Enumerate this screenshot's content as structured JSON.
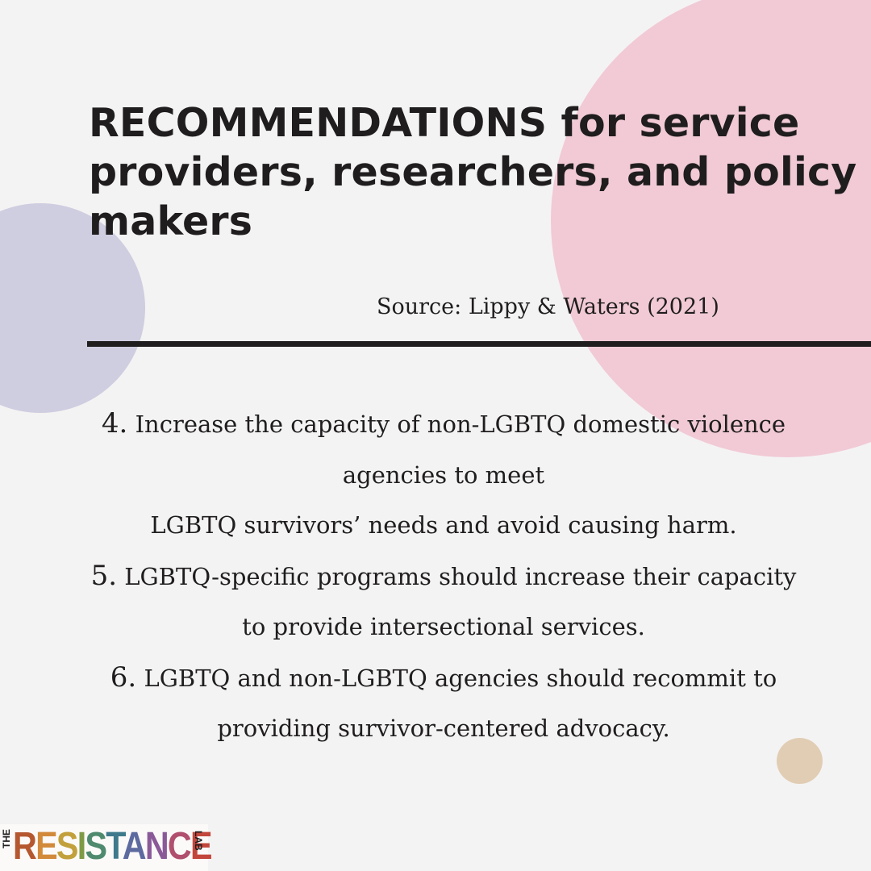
{
  "colors": {
    "background": "#f4f3f3",
    "pink_circle": "#f1cad6",
    "lavender_circle": "#cfcde0",
    "tan_circle": "#e1cdb4",
    "text": "#1f1d1d"
  },
  "header": {
    "title": "RECOMMENDATIONS for service providers, researchers, and policy makers",
    "source": "Source: Lippy & Waters (2021)"
  },
  "recommendations": [
    {
      "number": "4.",
      "lines": [
        "Increase the capacity of non-LGBTQ domestic violence",
        "agencies to meet",
        "LGBTQ survivors’ needs and avoid causing harm."
      ]
    },
    {
      "number": "5.",
      "lines": [
        "LGBTQ-specific programs should increase their capacity",
        "to provide intersectional services."
      ]
    },
    {
      "number": "6.",
      "lines": [
        "LGBTQ and non-LGBTQ agencies should recommit to",
        "providing survivor-centered advocacy."
      ]
    }
  ],
  "logo": {
    "prefix": "THE",
    "word": "RESISTANCE",
    "suffix": "LAB",
    "letter_colors": [
      "#b5572f",
      "#d28a3a",
      "#c2a03c",
      "#7f9a45",
      "#4f8a6f",
      "#3e7a8c",
      "#5d6aa0",
      "#8a5a98",
      "#b14f6e",
      "#c2463b"
    ]
  }
}
